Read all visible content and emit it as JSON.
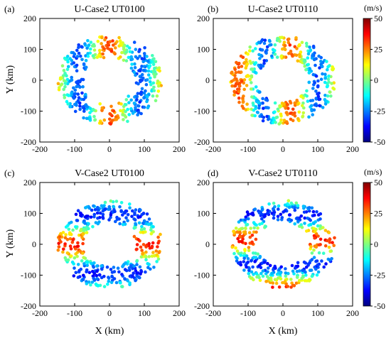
{
  "figure": {
    "panels": [
      {
        "letter": "(a)",
        "title": "U-Case2 UT0100"
      },
      {
        "letter": "(b)",
        "title": "U-Case2 UT0110"
      },
      {
        "letter": "(c)",
        "title": "V-Case2 UT0100"
      },
      {
        "letter": "(d)",
        "title": "V-Case2 UT0110"
      }
    ],
    "xlabel": "X (km)",
    "ylabel": "Y (km)",
    "colorbar": {
      "unit": "(m/s)",
      "ticks": [
        "50",
        "25",
        "0",
        "-25",
        "-50"
      ],
      "range": [
        -50,
        50
      ],
      "colormap": [
        "#00007f",
        "#0000ff",
        "#007fff",
        "#00ffff",
        "#7fff7f",
        "#ffff00",
        "#ff7f00",
        "#ff0000",
        "#7f0000"
      ]
    },
    "x_ticks": [
      "-200",
      "-100",
      "0",
      "100",
      "200"
    ],
    "y_ticks": [
      "200",
      "100",
      "0",
      "-100",
      "-200"
    ]
  },
  "chart_data": [
    {
      "type": "scatter",
      "title": "U-Case2 UT0100",
      "panel": "(a)",
      "seed": 11,
      "component": "U",
      "x": [
        -200,
        200
      ],
      "y": [
        -200,
        200
      ],
      "xlim": [
        -200,
        200
      ],
      "ylim": [
        -200,
        200
      ],
      "xlabel": "",
      "ylabel": "Y (km)",
      "value_range": [
        -50,
        50
      ],
      "grid": false
    },
    {
      "type": "scatter",
      "title": "U-Case2 UT0110",
      "panel": "(b)",
      "seed": 23,
      "component": "U",
      "x": [
        -200,
        200
      ],
      "y": [
        -200,
        200
      ],
      "xlim": [
        -200,
        200
      ],
      "ylim": [
        -200,
        200
      ],
      "xlabel": "",
      "ylabel": "",
      "value_range": [
        -50,
        50
      ],
      "grid": false
    },
    {
      "type": "scatter",
      "title": "V-Case2 UT0100",
      "panel": "(c)",
      "seed": 37,
      "component": "V",
      "x": [
        -200,
        200
      ],
      "y": [
        -200,
        200
      ],
      "xlim": [
        -200,
        200
      ],
      "ylim": [
        -200,
        200
      ],
      "xlabel": "X (km)",
      "ylabel": "Y (km)",
      "value_range": [
        -50,
        50
      ],
      "grid": false
    },
    {
      "type": "scatter",
      "title": "V-Case2 UT0110",
      "panel": "(d)",
      "seed": 53,
      "component": "V",
      "x": [
        -200,
        200
      ],
      "y": [
        -200,
        200
      ],
      "xlim": [
        -200,
        200
      ],
      "ylim": [
        -200,
        200
      ],
      "xlabel": "X (km)",
      "ylabel": "",
      "value_range": [
        -50,
        50
      ],
      "grid": false
    }
  ]
}
